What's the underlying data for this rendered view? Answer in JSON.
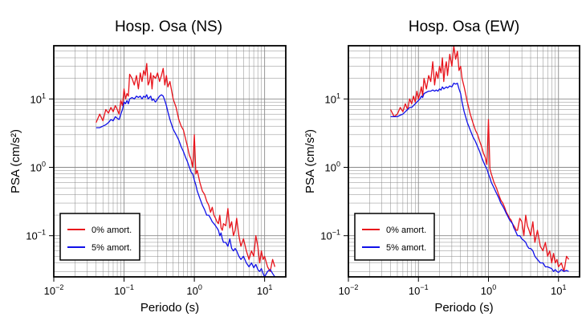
{
  "chart_data": [
    {
      "type": "line",
      "title": "Hosp. Osa (NS)",
      "xlabel": "Periodo (s)",
      "ylabel": "PSA (cm/s²)",
      "xscale": "log",
      "yscale": "log",
      "xlim": [
        0.01,
        20
      ],
      "ylim": [
        0.025,
        60
      ],
      "grid": true,
      "legend_position": "bottom-left",
      "color_0": "#e8131b",
      "color_5": "#1010e8",
      "x_ticks": [
        {
          "base": "10",
          "exp": "−2",
          "value": 0.01
        },
        {
          "base": "10",
          "exp": "−1",
          "value": 0.1
        },
        {
          "base": "10",
          "exp": "0",
          "value": 1
        },
        {
          "base": "10",
          "exp": "1",
          "value": 10
        }
      ],
      "y_ticks": [
        {
          "base": "10",
          "exp": "−1",
          "value": 0.1
        },
        {
          "base": "10",
          "exp": "0",
          "value": 1
        },
        {
          "base": "10",
          "exp": "1",
          "value": 10
        }
      ],
      "series": [
        {
          "name": "0% amort.",
          "x": [
            0.04,
            0.045,
            0.05,
            0.055,
            0.06,
            0.065,
            0.07,
            0.075,
            0.08,
            0.085,
            0.09,
            0.095,
            0.1,
            0.105,
            0.11,
            0.115,
            0.12,
            0.13,
            0.14,
            0.15,
            0.16,
            0.17,
            0.18,
            0.19,
            0.2,
            0.21,
            0.22,
            0.23,
            0.24,
            0.25,
            0.26,
            0.28,
            0.3,
            0.32,
            0.34,
            0.36,
            0.38,
            0.4,
            0.42,
            0.45,
            0.5,
            0.55,
            0.6,
            0.65,
            0.7,
            0.75,
            0.8,
            0.85,
            0.9,
            0.95,
            1.0,
            1.05,
            1.1,
            1.2,
            1.3,
            1.4,
            1.5,
            1.6,
            1.7,
            1.8,
            1.9,
            2.0,
            2.1,
            2.2,
            2.3,
            2.4,
            2.5,
            2.6,
            2.8,
            3.0,
            3.2,
            3.4,
            3.6,
            3.8,
            4.0,
            4.3,
            4.6,
            5.0,
            5.5,
            6.0,
            6.5,
            7.0,
            7.5,
            8.0,
            8.5,
            9.0,
            9.5,
            10.0,
            11.0,
            12.0,
            13.0,
            14.0
          ],
          "y": [
            4.5,
            6.0,
            4.8,
            7.0,
            6.2,
            7.5,
            6.5,
            8.0,
            7.0,
            6.0,
            9.5,
            8.0,
            14,
            10,
            12,
            11,
            23,
            20,
            16,
            22,
            14,
            24,
            18,
            26,
            22,
            33,
            16,
            18,
            24,
            14,
            22,
            20,
            24,
            18,
            22,
            28,
            16,
            22,
            15,
            18,
            10,
            7.5,
            5.0,
            4.0,
            3.5,
            2.6,
            2.0,
            1.5,
            1.3,
            1.0,
            3.0,
            0.8,
            0.9,
            0.6,
            0.45,
            0.4,
            0.32,
            0.28,
            0.22,
            0.26,
            0.2,
            0.18,
            0.16,
            0.15,
            0.2,
            0.13,
            0.12,
            0.15,
            0.14,
            0.25,
            0.13,
            0.16,
            0.1,
            0.12,
            0.18,
            0.1,
            0.07,
            0.09,
            0.06,
            0.045,
            0.06,
            0.05,
            0.1,
            0.07,
            0.04,
            0.06,
            0.045,
            0.05,
            0.035,
            0.03,
            0.045,
            0.035
          ]
        },
        {
          "name": "5% amort.",
          "x": [
            0.04,
            0.045,
            0.05,
            0.055,
            0.06,
            0.065,
            0.07,
            0.075,
            0.08,
            0.085,
            0.09,
            0.095,
            0.1,
            0.105,
            0.11,
            0.115,
            0.12,
            0.13,
            0.14,
            0.15,
            0.16,
            0.17,
            0.18,
            0.19,
            0.2,
            0.21,
            0.22,
            0.23,
            0.24,
            0.25,
            0.26,
            0.28,
            0.3,
            0.32,
            0.34,
            0.36,
            0.38,
            0.4,
            0.42,
            0.45,
            0.5,
            0.55,
            0.6,
            0.65,
            0.7,
            0.75,
            0.8,
            0.85,
            0.9,
            0.95,
            1.0,
            1.05,
            1.1,
            1.2,
            1.3,
            1.4,
            1.5,
            1.6,
            1.7,
            1.8,
            1.9,
            2.0,
            2.1,
            2.2,
            2.3,
            2.4,
            2.5,
            2.6,
            2.8,
            3.0,
            3.2,
            3.4,
            3.6,
            3.8,
            4.0,
            4.3,
            4.6,
            5.0,
            5.5,
            6.0,
            6.5,
            7.0,
            7.5,
            8.0,
            8.5,
            9.0,
            9.5,
            10.0,
            11.0,
            12.0,
            13.0,
            14.0
          ],
          "y": [
            3.8,
            3.8,
            4.0,
            4.2,
            4.5,
            5.0,
            4.8,
            5.5,
            5.2,
            5.0,
            6.0,
            7.0,
            9.0,
            8.5,
            9.5,
            8.5,
            10,
            10.5,
            10,
            11,
            10.5,
            11,
            10,
            11,
            10.5,
            11.5,
            10,
            10.5,
            11,
            9.5,
            10,
            9.0,
            10,
            11,
            11.5,
            11,
            9.5,
            8.0,
            6.5,
            5.0,
            3.6,
            3.0,
            2.5,
            2.0,
            1.7,
            1.4,
            1.2,
            1.0,
            0.85,
            0.8,
            0.65,
            0.55,
            0.45,
            0.35,
            0.28,
            0.24,
            0.2,
            0.2,
            0.18,
            0.16,
            0.15,
            0.14,
            0.13,
            0.12,
            0.1,
            0.11,
            0.09,
            0.08,
            0.08,
            0.07,
            0.09,
            0.065,
            0.06,
            0.065,
            0.06,
            0.05,
            0.045,
            0.05,
            0.04,
            0.035,
            0.04,
            0.034,
            0.038,
            0.032,
            0.03,
            0.033,
            0.028,
            0.025,
            0.03,
            0.032,
            0.028,
            0.025
          ]
        }
      ]
    },
    {
      "type": "line",
      "title": "Hosp. Osa (EW)",
      "xlabel": "Periodo (s)",
      "ylabel": "PSA (cm/s²)",
      "xscale": "log",
      "yscale": "log",
      "xlim": [
        0.01,
        20
      ],
      "ylim": [
        0.025,
        60
      ],
      "grid": true,
      "legend_position": "bottom-left",
      "color_0": "#e8131b",
      "color_5": "#1010e8",
      "x_ticks": [
        {
          "base": "10",
          "exp": "−2",
          "value": 0.01
        },
        {
          "base": "10",
          "exp": "−1",
          "value": 0.1
        },
        {
          "base": "10",
          "exp": "0",
          "value": 1
        },
        {
          "base": "10",
          "exp": "1",
          "value": 10
        }
      ],
      "y_ticks": [
        {
          "base": "10",
          "exp": "−1",
          "value": 0.1
        },
        {
          "base": "10",
          "exp": "0",
          "value": 1
        },
        {
          "base": "10",
          "exp": "1",
          "value": 10
        }
      ],
      "series": [
        {
          "name": "0% amort.",
          "x": [
            0.04,
            0.045,
            0.05,
            0.055,
            0.06,
            0.065,
            0.07,
            0.075,
            0.08,
            0.085,
            0.09,
            0.095,
            0.1,
            0.105,
            0.11,
            0.115,
            0.12,
            0.13,
            0.14,
            0.15,
            0.16,
            0.17,
            0.18,
            0.19,
            0.2,
            0.21,
            0.22,
            0.23,
            0.24,
            0.25,
            0.26,
            0.28,
            0.3,
            0.32,
            0.34,
            0.36,
            0.38,
            0.4,
            0.42,
            0.45,
            0.5,
            0.55,
            0.6,
            0.65,
            0.7,
            0.75,
            0.8,
            0.85,
            0.9,
            0.95,
            1.0,
            1.05,
            1.1,
            1.2,
            1.3,
            1.4,
            1.5,
            1.6,
            1.7,
            1.8,
            1.9,
            2.0,
            2.1,
            2.2,
            2.3,
            2.4,
            2.5,
            2.6,
            2.8,
            3.0,
            3.2,
            3.4,
            3.6,
            3.8,
            4.0,
            4.3,
            4.6,
            5.0,
            5.5,
            6.0,
            6.5,
            7.0,
            7.5,
            8.0,
            8.5,
            9.0,
            9.5,
            10.0,
            11.0,
            12.0,
            13.0,
            14.0
          ],
          "y": [
            7.0,
            5.5,
            6.0,
            7.5,
            6.5,
            8.5,
            7.0,
            10,
            8.5,
            11,
            9.0,
            13,
            10,
            12,
            15,
            11,
            20,
            14,
            22,
            18,
            35,
            16,
            25,
            20,
            30,
            24,
            40,
            18,
            28,
            35,
            22,
            45,
            30,
            60,
            38,
            50,
            26,
            30,
            20,
            15,
            9.0,
            6.0,
            4.5,
            3.5,
            3.0,
            2.4,
            2.0,
            1.6,
            1.4,
            1.1,
            5.0,
            0.95,
            0.8,
            0.6,
            0.5,
            0.4,
            0.33,
            0.3,
            0.26,
            0.22,
            0.2,
            0.18,
            0.17,
            0.15,
            0.14,
            0.13,
            0.12,
            0.12,
            0.18,
            0.16,
            0.1,
            0.2,
            0.14,
            0.12,
            0.1,
            0.16,
            0.08,
            0.12,
            0.07,
            0.06,
            0.08,
            0.05,
            0.06,
            0.04,
            0.055,
            0.04,
            0.045,
            0.035,
            0.04,
            0.03,
            0.05,
            0.045
          ]
        },
        {
          "name": "5% amort.",
          "x": [
            0.04,
            0.045,
            0.05,
            0.055,
            0.06,
            0.065,
            0.07,
            0.075,
            0.08,
            0.085,
            0.09,
            0.095,
            0.1,
            0.105,
            0.11,
            0.115,
            0.12,
            0.13,
            0.14,
            0.15,
            0.16,
            0.17,
            0.18,
            0.19,
            0.2,
            0.21,
            0.22,
            0.23,
            0.24,
            0.25,
            0.26,
            0.28,
            0.3,
            0.32,
            0.34,
            0.36,
            0.38,
            0.4,
            0.42,
            0.45,
            0.5,
            0.55,
            0.6,
            0.65,
            0.7,
            0.75,
            0.8,
            0.85,
            0.9,
            0.95,
            1.0,
            1.05,
            1.1,
            1.2,
            1.3,
            1.4,
            1.5,
            1.6,
            1.7,
            1.8,
            1.9,
            2.0,
            2.1,
            2.2,
            2.3,
            2.4,
            2.5,
            2.6,
            2.8,
            3.0,
            3.2,
            3.4,
            3.6,
            3.8,
            4.0,
            4.3,
            4.6,
            5.0,
            5.5,
            6.0,
            6.5,
            7.0,
            7.5,
            8.0,
            8.5,
            9.0,
            9.5,
            10.0,
            11.0,
            12.0,
            13.0,
            14.0
          ],
          "y": [
            5.5,
            5.5,
            5.5,
            5.8,
            6.0,
            6.5,
            7.0,
            7.5,
            7.5,
            8.0,
            8.5,
            9.0,
            9.5,
            10,
            11,
            10.5,
            12,
            12.5,
            13,
            13,
            13.5,
            13,
            13.5,
            13,
            14,
            13.5,
            15,
            14,
            14.5,
            15,
            14.5,
            15.5,
            15,
            17,
            16.5,
            17,
            14,
            12,
            9.0,
            6.5,
            4.5,
            3.5,
            2.8,
            2.4,
            2.0,
            1.7,
            1.4,
            1.2,
            1.05,
            0.95,
            0.8,
            0.7,
            0.6,
            0.5,
            0.42,
            0.36,
            0.3,
            0.27,
            0.24,
            0.21,
            0.19,
            0.17,
            0.16,
            0.15,
            0.13,
            0.12,
            0.11,
            0.1,
            0.1,
            0.09,
            0.085,
            0.08,
            0.07,
            0.065,
            0.065,
            0.06,
            0.05,
            0.045,
            0.04,
            0.04,
            0.035,
            0.035,
            0.034,
            0.033,
            0.03,
            0.032,
            0.03,
            0.029,
            0.032,
            0.03,
            0.031,
            0.03
          ]
        }
      ]
    }
  ]
}
